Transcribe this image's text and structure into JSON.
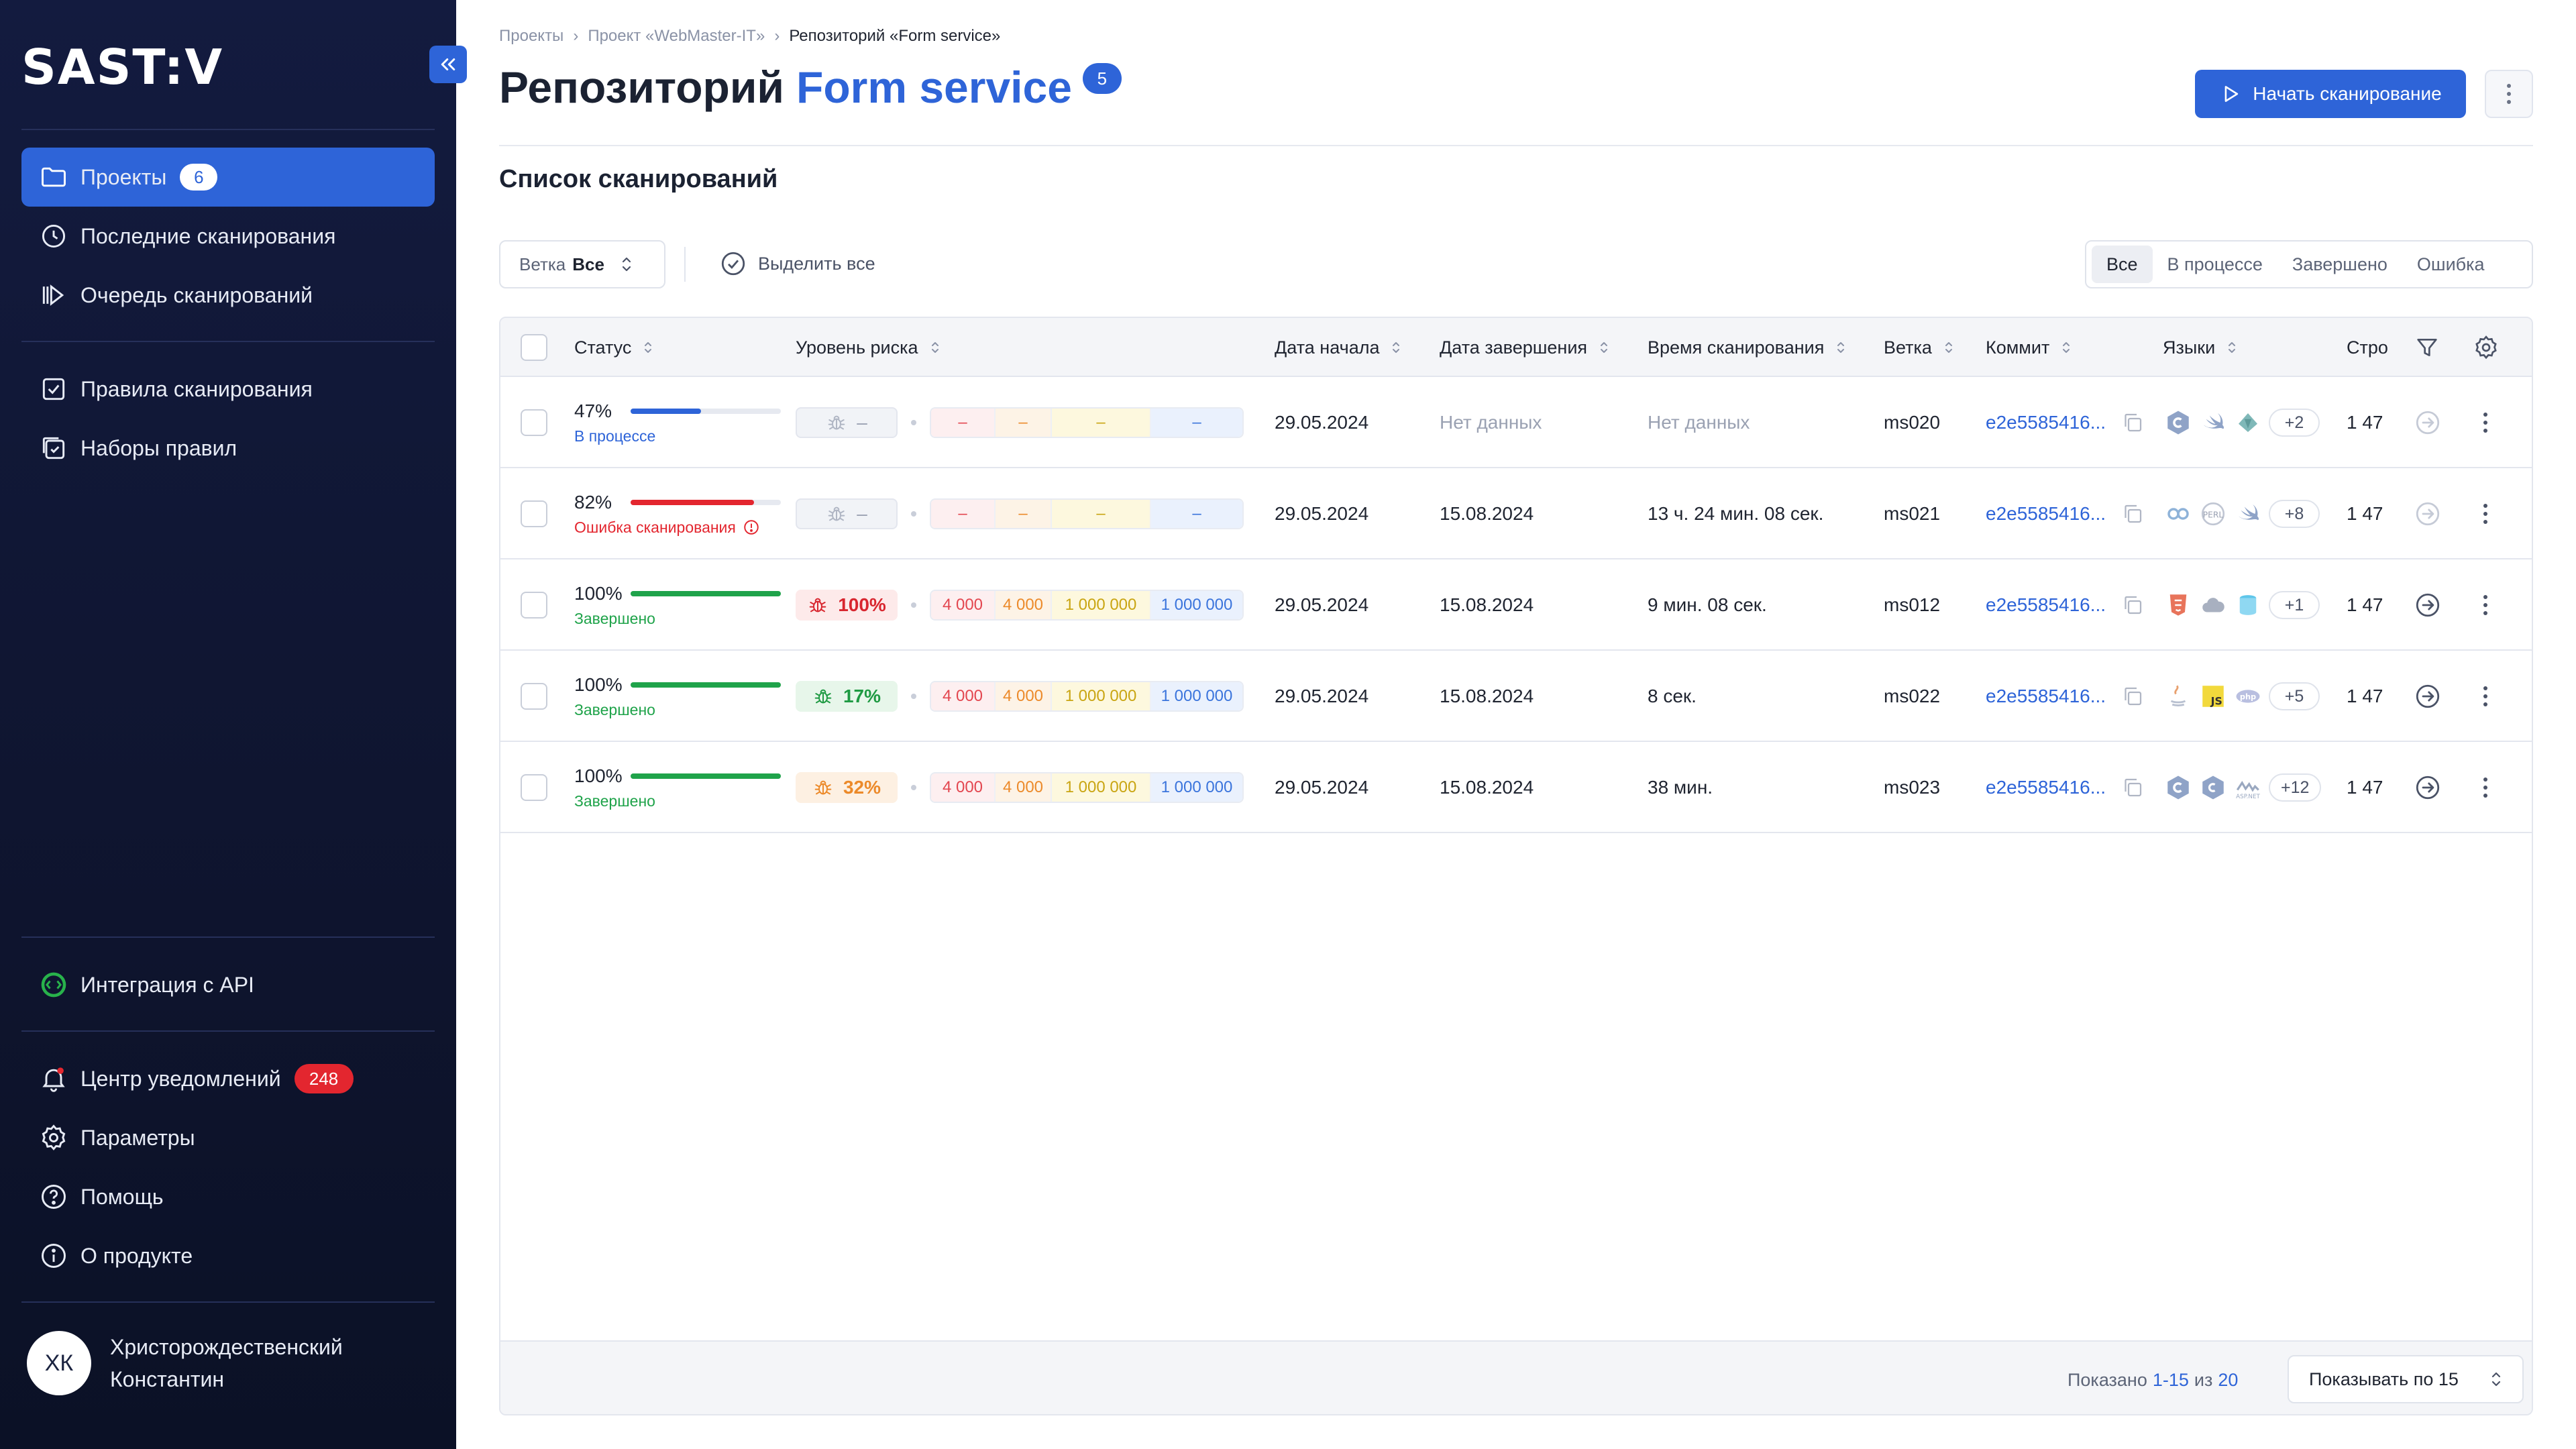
{
  "app": {
    "logo": "SAST:V",
    "colors": {
      "accent": "#2e64d8",
      "sidebar": "#131b3f",
      "danger": "#e3262f",
      "success": "#1fa34a",
      "warning": "#f08a24"
    }
  },
  "sidebar": {
    "nav_top": [
      {
        "label": "Проекты",
        "badge": "6",
        "icon": "folder-icon",
        "active": true
      },
      {
        "label": "Последние сканирования",
        "icon": "clock-icon"
      },
      {
        "label": "Очередь сканирований",
        "icon": "queue-icon"
      }
    ],
    "nav_rules": [
      {
        "label": "Правила сканирования",
        "icon": "checklist-icon"
      },
      {
        "label": "Наборы правил",
        "icon": "ruleset-icon"
      }
    ],
    "api": {
      "label": "Интеграция с API",
      "icon": "api-icon"
    },
    "nav_bottom": [
      {
        "label": "Центр уведомлений",
        "badge": "248",
        "icon": "bell-icon"
      },
      {
        "label": "Параметры",
        "icon": "gear-icon"
      },
      {
        "label": "Помощь",
        "icon": "help-icon"
      },
      {
        "label": "О продукте",
        "icon": "info-icon"
      }
    ],
    "user": {
      "initials": "ХК",
      "name_line1": "Христорождественский",
      "name_line2": "Константин"
    }
  },
  "header": {
    "breadcrumb": [
      "Проекты",
      "Проект «WebMaster-IT»",
      "Репозиторий «Form service»"
    ],
    "title_prefix": "Репозиторий",
    "title_accent": "Form service",
    "title_badge": "5",
    "start_button": "Начать сканирование"
  },
  "section_title": "Список сканирований",
  "toolbar": {
    "branch_label": "Ветка",
    "branch_value": "Все",
    "select_all": "Выделить все",
    "filters": [
      {
        "label": "Все",
        "active": true
      },
      {
        "label": "В процессе"
      },
      {
        "label": "Завершено"
      },
      {
        "label": "Ошибка"
      }
    ]
  },
  "table": {
    "columns": {
      "status": "Статус",
      "risk": "Уровень риска",
      "start": "Дата начала",
      "end": "Дата завершения",
      "duration": "Время сканирования",
      "branch": "Ветка",
      "commit": "Коммит",
      "languages": "Языки",
      "lines": "Стро"
    },
    "rows": [
      {
        "progress": 47,
        "progress_label": "47%",
        "status": "В процессе",
        "status_color": "#2e64d8",
        "bar_color": "#2e64d8",
        "risk": "–",
        "risk_kind": "none",
        "counts": [
          "–",
          "–",
          "–",
          "–"
        ],
        "start": "29.05.2024",
        "end": "Нет данных",
        "end_muted": true,
        "duration": "Нет данных",
        "duration_muted": true,
        "branch": "ms020",
        "commit": "e2e5585416...",
        "langs": [
          "csharp-icon",
          "swift-icon",
          "rust-icon"
        ],
        "langs_more": "+2",
        "lines": "1 47",
        "arrow_active": false
      },
      {
        "progress": 82,
        "progress_label": "82%",
        "status": "Ошибка сканирования",
        "status_color": "#e3262f",
        "bar_color": "#e3262f",
        "risk": "–",
        "risk_kind": "none",
        "counts": [
          "–",
          "–",
          "–",
          "–"
        ],
        "start": "29.05.2024",
        "end": "15.08.2024",
        "duration": "13 ч. 24 мин. 08 сек.",
        "branch": "ms021",
        "commit": "e2e5585416...",
        "langs": [
          "go-icon",
          "perl-icon",
          "swift-icon"
        ],
        "langs_more": "+8",
        "lines": "1 47",
        "arrow_active": false,
        "error_info": true
      },
      {
        "progress": 100,
        "progress_label": "100%",
        "status": "Завершено",
        "status_color": "#1fa34a",
        "bar_color": "#1fa34a",
        "risk": "100%",
        "risk_kind": "high",
        "counts": [
          "4 000",
          "4 000",
          "1 000 000",
          "1 000 000"
        ],
        "start": "29.05.2024",
        "end": "15.08.2024",
        "duration": "9 мин. 08 сек.",
        "branch": "ms012",
        "commit": "e2e5585416...",
        "langs": [
          "html-icon",
          "cloud-icon",
          "db-icon"
        ],
        "langs_more": "+1",
        "lines": "1 47",
        "arrow_active": true
      },
      {
        "progress": 100,
        "progress_label": "100%",
        "status": "Завершено",
        "status_color": "#1fa34a",
        "bar_color": "#1fa34a",
        "risk": "17%",
        "risk_kind": "low",
        "counts": [
          "4 000",
          "4 000",
          "1 000 000",
          "1 000 000"
        ],
        "start": "29.05.2024",
        "end": "15.08.2024",
        "duration": "8 сек.",
        "branch": "ms022",
        "commit": "e2e5585416...",
        "langs": [
          "java-icon",
          "js-icon",
          "php-icon"
        ],
        "langs_more": "+5",
        "lines": "1 47",
        "arrow_active": true
      },
      {
        "progress": 100,
        "progress_label": "100%",
        "status": "Завершено",
        "status_color": "#1fa34a",
        "bar_color": "#1fa34a",
        "risk": "32%",
        "risk_kind": "medium",
        "counts": [
          "4 000",
          "4 000",
          "1 000 000",
          "1 000 000"
        ],
        "start": "29.05.2024",
        "end": "15.08.2024",
        "duration": "38 мин.",
        "branch": "ms023",
        "commit": "e2e5585416...",
        "langs": [
          "csharp-icon",
          "cpp-icon",
          "asp-icon"
        ],
        "langs_more": "+12",
        "lines": "1 47",
        "arrow_active": true
      }
    ]
  },
  "footer": {
    "shown_prefix": "Показано",
    "shown_range": "1-15",
    "shown_of": "из",
    "shown_total": "20",
    "per_page": "Показывать по 15"
  }
}
